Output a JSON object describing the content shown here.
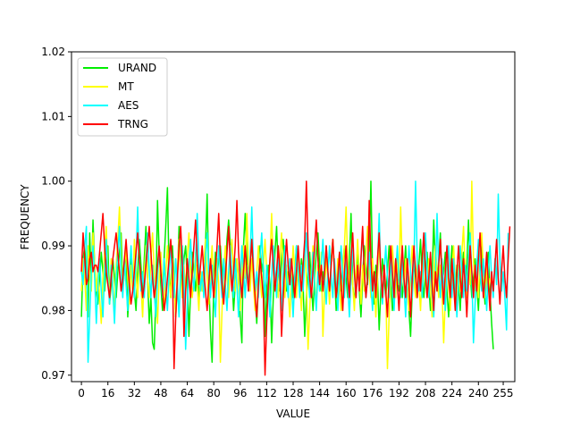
{
  "chart_data": {
    "type": "line",
    "title": "",
    "xlabel": "VALUE",
    "ylabel": "FREQUENCY",
    "xlim": [
      -6,
      262
    ],
    "ylim": [
      0.969,
      1.02
    ],
    "xticks": [
      0,
      16,
      32,
      48,
      64,
      80,
      96,
      112,
      128,
      144,
      160,
      176,
      192,
      208,
      224,
      240,
      255
    ],
    "yticks": [
      0.97,
      0.98,
      0.99,
      1.0,
      1.01,
      1.02
    ],
    "ytick_labels": [
      "0.97",
      "0.98",
      "0.99",
      "1.00",
      "1.01",
      "1.02"
    ],
    "legend_position": "top-left",
    "grid": false,
    "x": {
      "start": 0,
      "end": 255,
      "step": 1
    },
    "series": [
      {
        "name": "URAND",
        "color": "#00ee00",
        "values": [
          0.979,
          0.988,
          0.99,
          0.985,
          0.979,
          0.992,
          0.984,
          0.994,
          0.987,
          0.983,
          0.981,
          0.985,
          0.989,
          0.986,
          0.983,
          0.987,
          0.99,
          0.981,
          0.984,
          0.988,
          0.985,
          0.982,
          0.986,
          0.989,
          0.992,
          0.983,
          0.986,
          0.99,
          0.979,
          0.984,
          0.988,
          0.986,
          0.983,
          0.98,
          0.986,
          0.991,
          0.987,
          0.982,
          0.988,
          0.993,
          0.985,
          0.978,
          0.982,
          0.975,
          0.974,
          0.982,
          0.997,
          0.989,
          0.984,
          0.98,
          0.988,
          0.993,
          0.999,
          0.986,
          0.982,
          0.99,
          0.985,
          0.979,
          0.984,
          0.993,
          0.987,
          0.982,
          0.988,
          0.99,
          0.985,
          0.976,
          0.983,
          0.989,
          0.986,
          0.983,
          0.987,
          0.982,
          0.985,
          0.983,
          0.986,
          0.99,
          0.998,
          0.985,
          0.977,
          0.972,
          0.984,
          0.989,
          0.985,
          0.988,
          0.99,
          0.986,
          0.982,
          0.985,
          0.991,
          0.994,
          0.99,
          0.985,
          0.98,
          0.984,
          0.988,
          0.985,
          0.979,
          0.975,
          0.99,
          0.995,
          0.988,
          0.983,
          0.987,
          0.991,
          0.986,
          0.982,
          0.978,
          0.984,
          0.99,
          0.986,
          0.988,
          0.976,
          0.983,
          0.987,
          0.984,
          0.975,
          0.982,
          0.989,
          0.993,
          0.986,
          0.983,
          0.988,
          0.991,
          0.987,
          0.983,
          0.986,
          0.984,
          0.988,
          0.982,
          0.986,
          0.99,
          0.985,
          0.983,
          0.988,
          0.984,
          0.976,
          0.982,
          0.986,
          0.989,
          0.984,
          0.98,
          0.985,
          0.989,
          0.992,
          0.987,
          0.983,
          0.986,
          0.984,
          0.99,
          0.986,
          0.982,
          0.988,
          0.991,
          0.986,
          0.98,
          0.985,
          0.989,
          0.983,
          0.987,
          0.99,
          0.985,
          0.982,
          0.988,
          0.995,
          0.984,
          0.981,
          0.986,
          0.989,
          0.983,
          0.979,
          0.985,
          0.99,
          0.987,
          0.984,
          0.989,
          1.0,
          0.986,
          0.981,
          0.987,
          0.985,
          0.977,
          0.983,
          0.988,
          0.985,
          0.982,
          0.986,
          0.99,
          0.985,
          0.98,
          0.984,
          0.988,
          0.985,
          0.983,
          0.986,
          0.982,
          0.986,
          0.99,
          0.984,
          0.98,
          0.976,
          0.983,
          0.988,
          0.985,
          0.982,
          0.987,
          0.991,
          0.985,
          0.982,
          0.986,
          0.989,
          0.984,
          0.98,
          0.985,
          0.994,
          0.987,
          0.983,
          0.988,
          0.992,
          0.984,
          0.986,
          0.989,
          0.983,
          0.979,
          0.985,
          0.99,
          0.986,
          0.982,
          0.987,
          0.984,
          0.98,
          0.986,
          0.989,
          0.983,
          0.987,
          0.994,
          0.986,
          0.982,
          0.985,
          0.988,
          0.984,
          0.98,
          0.986,
          0.99,
          0.985,
          0.981,
          0.986,
          0.989,
          0.983,
          0.978,
          0.974
        ]
      },
      {
        "name": "MT",
        "color": "#ffff00",
        "values": [
          0.983,
          0.988,
          0.985,
          0.98,
          0.99,
          0.986,
          0.983,
          0.992,
          0.987,
          0.983,
          0.986,
          0.982,
          0.978,
          0.985,
          0.989,
          0.993,
          0.986,
          0.982,
          0.988,
          0.984,
          0.98,
          0.987,
          0.991,
          0.996,
          0.988,
          0.983,
          0.986,
          0.99,
          0.985,
          0.981,
          0.987,
          0.983,
          0.991,
          0.986,
          0.982,
          0.988,
          0.984,
          0.979,
          0.986,
          0.99,
          0.985,
          0.982,
          0.988,
          0.992,
          0.986,
          0.983,
          0.978,
          0.985,
          0.989,
          0.984,
          0.98,
          0.986,
          0.99,
          0.985,
          0.982,
          0.988,
          0.984,
          0.979,
          0.986,
          0.991,
          0.985,
          0.982,
          0.987,
          0.983,
          0.988,
          0.992,
          0.986,
          0.982,
          0.985,
          0.989,
          0.984,
          0.98,
          0.986,
          0.983,
          0.987,
          0.991,
          0.985,
          0.981,
          0.986,
          0.99,
          0.985,
          0.982,
          0.988,
          0.984,
          0.972,
          0.98,
          0.986,
          0.99,
          0.985,
          0.982,
          0.987,
          0.991,
          0.986,
          0.983,
          0.988,
          0.984,
          0.98,
          0.986,
          0.99,
          0.985,
          0.995,
          0.987,
          0.983,
          0.988,
          0.984,
          0.98,
          0.986,
          0.99,
          0.985,
          0.982,
          0.987,
          0.991,
          0.986,
          0.983,
          0.988,
          0.995,
          0.987,
          0.983,
          0.986,
          0.982,
          0.988,
          0.992,
          0.986,
          0.982,
          0.987,
          0.983,
          0.979,
          0.985,
          0.99,
          0.986,
          0.982,
          0.988,
          0.984,
          0.98,
          0.986,
          0.99,
          0.985,
          0.974,
          0.98,
          0.986,
          0.99,
          0.985,
          0.981,
          0.987,
          0.983,
          0.989,
          0.976,
          0.983,
          0.988,
          0.985,
          0.981,
          0.987,
          0.991,
          0.986,
          0.983,
          0.988,
          0.984,
          0.98,
          0.986,
          0.99,
          0.996,
          0.987,
          0.983,
          0.988,
          0.984,
          0.98,
          0.986,
          0.991,
          0.985,
          0.981,
          0.987,
          0.983,
          0.989,
          0.993,
          0.986,
          0.982,
          0.988,
          0.984,
          0.979,
          0.985,
          0.99,
          0.986,
          0.982,
          0.987,
          0.983,
          0.971,
          0.979,
          0.985,
          0.99,
          0.986,
          0.982,
          0.988,
          0.984,
          0.996,
          0.987,
          0.983,
          0.988,
          0.984,
          0.98,
          0.986,
          0.99,
          0.985,
          0.982,
          0.988,
          0.984,
          0.98,
          0.986,
          0.99,
          0.985,
          0.982,
          0.988,
          0.984,
          0.979,
          0.985,
          0.99,
          0.986,
          0.982,
          0.987,
          0.983,
          0.975,
          0.982,
          0.988,
          0.984,
          0.98,
          0.986,
          0.99,
          0.985,
          0.981,
          0.987,
          0.983,
          0.989,
          0.993,
          0.986,
          0.982,
          0.988,
          0.984,
          1.0,
          0.988,
          0.983,
          0.986,
          0.982,
          0.988,
          0.992,
          0.986,
          0.982,
          0.987,
          0.983,
          0.985
        ]
      },
      {
        "name": "AES",
        "color": "#00ffff",
        "values": [
          0.986,
          0.984,
          0.99,
          0.993,
          0.972,
          0.979,
          0.986,
          0.99,
          0.985,
          0.978,
          0.984,
          0.988,
          0.983,
          0.979,
          0.986,
          0.991,
          0.985,
          0.981,
          0.987,
          0.983,
          0.978,
          0.985,
          0.989,
          0.993,
          0.986,
          0.982,
          0.988,
          0.984,
          0.98,
          0.986,
          0.99,
          0.985,
          0.982,
          0.988,
          0.996,
          0.987,
          0.983,
          0.986,
          0.982,
          0.988,
          0.992,
          0.986,
          0.982,
          0.987,
          0.983,
          0.979,
          0.985,
          0.99,
          0.986,
          0.982,
          0.988,
          0.984,
          0.98,
          0.986,
          0.99,
          0.985,
          0.982,
          0.988,
          0.984,
          0.979,
          0.986,
          0.99,
          0.985,
          0.974,
          0.981,
          0.987,
          0.991,
          0.986,
          0.983,
          0.988,
          0.995,
          0.987,
          0.983,
          0.986,
          0.982,
          0.988,
          0.992,
          0.986,
          0.982,
          0.987,
          0.983,
          0.979,
          0.985,
          0.99,
          0.986,
          0.982,
          0.988,
          0.984,
          0.98,
          0.986,
          0.99,
          0.985,
          0.982,
          0.988,
          0.984,
          0.979,
          0.985,
          0.99,
          0.986,
          0.982,
          0.987,
          0.983,
          0.988,
          0.996,
          0.987,
          0.983,
          0.986,
          0.982,
          0.988,
          0.992,
          0.986,
          0.982,
          0.987,
          0.983,
          0.979,
          0.985,
          0.99,
          0.986,
          0.982,
          0.988,
          0.984,
          0.98,
          0.986,
          0.99,
          0.985,
          0.982,
          0.988,
          0.984,
          0.979,
          0.985,
          0.99,
          0.986,
          0.982,
          0.987,
          0.983,
          0.988,
          0.992,
          0.986,
          0.982,
          0.985,
          0.989,
          0.984,
          0.98,
          0.986,
          0.983,
          0.987,
          0.991,
          0.985,
          0.981,
          0.986,
          0.99,
          0.985,
          0.982,
          0.988,
          0.984,
          0.98,
          0.986,
          0.99,
          0.985,
          0.982,
          0.988,
          0.984,
          0.979,
          0.985,
          0.99,
          0.986,
          0.982,
          0.987,
          0.983,
          0.988,
          0.992,
          0.986,
          0.982,
          0.985,
          0.989,
          0.984,
          0.98,
          0.986,
          0.983,
          0.987,
          0.995,
          0.985,
          0.981,
          0.986,
          0.99,
          0.985,
          0.982,
          0.988,
          0.984,
          0.98,
          0.986,
          0.99,
          0.985,
          0.982,
          0.988,
          0.984,
          0.979,
          0.985,
          0.99,
          0.986,
          0.982,
          0.987,
          1.0,
          0.988,
          0.983,
          0.986,
          0.982,
          0.988,
          0.992,
          0.986,
          0.982,
          0.987,
          0.983,
          0.979,
          0.985,
          0.995,
          0.986,
          0.982,
          0.988,
          0.984,
          0.98,
          0.986,
          0.99,
          0.985,
          0.982,
          0.988,
          0.984,
          0.979,
          0.985,
          0.99,
          0.986,
          0.982,
          0.987,
          0.983,
          0.988,
          0.992,
          0.986,
          0.975,
          0.981,
          0.987,
          0.991,
          0.986,
          0.983,
          0.988,
          0.984,
          0.98,
          0.986,
          0.99,
          0.985,
          0.982,
          0.988,
          0.984,
          0.998,
          0.988,
          0.983,
          0.986,
          0.982,
          0.977,
          0.992
        ]
      },
      {
        "name": "TRNG",
        "color": "#ff0000",
        "values": [
          0.986,
          0.992,
          0.988,
          0.984,
          0.985,
          0.988,
          0.989,
          0.986,
          0.987,
          0.987,
          0.986,
          0.989,
          0.992,
          0.995,
          0.99,
          0.986,
          0.984,
          0.982,
          0.985,
          0.988,
          0.99,
          0.992,
          0.989,
          0.986,
          0.983,
          0.985,
          0.988,
          0.991,
          0.987,
          0.984,
          0.981,
          0.983,
          0.986,
          0.989,
          0.992,
          0.988,
          0.985,
          0.982,
          0.984,
          0.987,
          0.99,
          0.993,
          0.989,
          0.985,
          0.982,
          0.984,
          0.987,
          0.99,
          0.986,
          0.983,
          0.98,
          0.982,
          0.985,
          0.988,
          0.991,
          0.987,
          0.971,
          0.979,
          0.985,
          0.99,
          0.993,
          0.987,
          0.976,
          0.983,
          0.988,
          0.985,
          0.982,
          0.986,
          0.99,
          0.994,
          0.988,
          0.984,
          0.987,
          0.99,
          0.986,
          0.983,
          0.98,
          0.984,
          0.988,
          0.985,
          0.982,
          0.986,
          0.99,
          0.995,
          0.988,
          0.984,
          0.981,
          0.985,
          0.989,
          0.993,
          0.987,
          0.983,
          0.986,
          0.99,
          0.997,
          0.989,
          0.985,
          0.982,
          0.986,
          0.99,
          0.986,
          0.983,
          0.987,
          0.991,
          0.986,
          0.982,
          0.979,
          0.984,
          0.988,
          0.985,
          0.982,
          0.97,
          0.978,
          0.984,
          0.988,
          0.991,
          0.987,
          0.983,
          0.986,
          0.99,
          0.986,
          0.976,
          0.982,
          0.987,
          0.991,
          0.987,
          0.984,
          0.988,
          0.985,
          0.982,
          0.986,
          0.99,
          0.986,
          0.983,
          0.987,
          0.991,
          1.0,
          0.99,
          0.985,
          0.982,
          0.986,
          0.99,
          0.994,
          0.988,
          0.984,
          0.987,
          0.983,
          0.986,
          0.99,
          0.986,
          0.983,
          0.987,
          0.991,
          0.986,
          0.982,
          0.985,
          0.989,
          0.984,
          0.98,
          0.986,
          0.99,
          0.985,
          0.982,
          0.988,
          0.992,
          0.986,
          0.982,
          0.987,
          0.983,
          0.988,
          0.993,
          0.986,
          0.982,
          0.985,
          0.997,
          0.988,
          0.983,
          0.986,
          0.982,
          0.988,
          0.992,
          0.986,
          0.982,
          0.987,
          0.983,
          0.979,
          0.985,
          0.99,
          0.986,
          0.982,
          0.988,
          0.984,
          0.98,
          0.986,
          0.99,
          0.985,
          0.982,
          0.988,
          0.984,
          0.979,
          0.985,
          0.99,
          0.986,
          0.982,
          0.987,
          0.983,
          0.988,
          0.992,
          0.986,
          0.982,
          0.985,
          0.989,
          0.984,
          0.98,
          0.986,
          0.983,
          0.987,
          0.991,
          0.985,
          0.981,
          0.986,
          0.99,
          0.985,
          0.982,
          0.988,
          0.984,
          0.98,
          0.986,
          0.99,
          0.985,
          0.982,
          0.988,
          0.984,
          0.979,
          0.985,
          0.99,
          0.986,
          0.982,
          0.987,
          0.983,
          0.988,
          0.992,
          0.986,
          0.982,
          0.985,
          0.989,
          0.984,
          0.98,
          0.986,
          0.983,
          0.987,
          0.991,
          0.985,
          0.981,
          0.986,
          0.99,
          0.985,
          0.982,
          0.988,
          0.993
        ]
      }
    ]
  }
}
